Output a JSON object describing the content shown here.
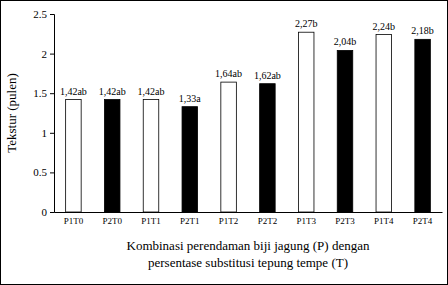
{
  "chart_data": {
    "type": "bar",
    "categories": [
      "P1T0",
      "P2T0",
      "P1T1",
      "P2T1",
      "P1T2",
      "P2T2",
      "P1T3",
      "P2T3",
      "P1T4",
      "P2T4"
    ],
    "values": [
      1.42,
      1.42,
      1.42,
      1.33,
      1.64,
      1.62,
      2.27,
      2.04,
      2.24,
      2.18
    ],
    "value_labels": [
      "1,42ab",
      "1,42ab",
      "1,42ab",
      "1,33a",
      "1,64ab",
      "1,62ab",
      "2,27b",
      "2,04b",
      "2,24b",
      "2,18b"
    ],
    "colors": [
      "#ffffff",
      "#000000",
      "#ffffff",
      "#000000",
      "#ffffff",
      "#000000",
      "#ffffff",
      "#000000",
      "#ffffff",
      "#000000"
    ],
    "ylabel": "Tekstur (pulen)",
    "xlabel": [
      "Kombinasi perendaman biji jagung (P) dengan",
      "persentase substitusi tepung tempe (T)"
    ],
    "ylim": [
      0,
      2.5
    ],
    "yticks": [
      0,
      0.5,
      1,
      1.5,
      2,
      2.5
    ],
    "data_labels": true,
    "grid": false
  }
}
